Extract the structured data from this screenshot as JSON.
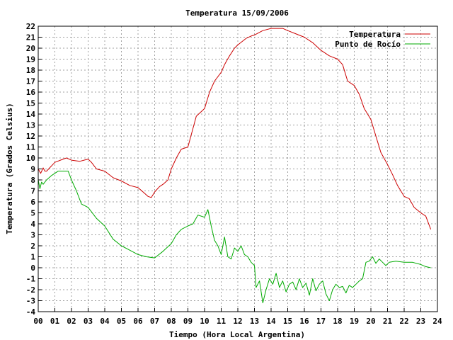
{
  "chart_data": {
    "type": "line",
    "title": "Temperatura 15/09/2006",
    "xlabel": "Tiempo (Hora Local Argentina)",
    "ylabel": "Temperatura (Grados Celsius)",
    "xlim": [
      0,
      24
    ],
    "ylim": [
      -4,
      22
    ],
    "x_ticks": [
      "00",
      "01",
      "02",
      "03",
      "04",
      "05",
      "06",
      "07",
      "08",
      "09",
      "10",
      "11",
      "12",
      "13",
      "14",
      "15",
      "16",
      "17",
      "18",
      "19",
      "20",
      "21",
      "22",
      "23",
      "24"
    ],
    "y_ticks": [
      "-4",
      "-3",
      "-2",
      "-1",
      "0",
      "1",
      "2",
      "3",
      "4",
      "5",
      "6",
      "7",
      "8",
      "9",
      "10",
      "11",
      "12",
      "13",
      "14",
      "15",
      "16",
      "17",
      "18",
      "19",
      "20",
      "21",
      "22"
    ],
    "grid": true,
    "legend_position": "top-right",
    "series": [
      {
        "name": "Temperatura",
        "color": "#cc0000",
        "x": [
          0.0,
          0.15,
          0.3,
          0.4,
          0.5,
          1.0,
          1.5,
          1.7,
          2.0,
          2.5,
          3.0,
          3.2,
          3.5,
          4.0,
          4.5,
          5.0,
          5.5,
          6.0,
          6.3,
          6.6,
          6.8,
          7.0,
          7.3,
          7.5,
          7.8,
          8.0,
          8.3,
          8.6,
          9.0,
          9.5,
          10.0,
          10.3,
          10.6,
          11.0,
          11.2,
          11.5,
          11.8,
          12.0,
          12.5,
          12.8,
          13.0,
          13.5,
          14.0,
          14.3,
          14.7,
          15.0,
          15.5,
          16.0,
          16.5,
          17.0,
          17.5,
          18.0,
          18.3,
          18.6,
          19.0,
          19.3,
          19.6,
          20.0,
          20.3,
          20.6,
          21.0,
          21.3,
          21.6,
          22.0,
          22.3,
          22.6,
          23.0,
          23.3,
          23.6
        ],
        "y": [
          9.0,
          8.6,
          9.1,
          8.8,
          8.8,
          9.6,
          9.9,
          10.0,
          9.8,
          9.7,
          9.9,
          9.6,
          9.0,
          8.8,
          8.2,
          7.9,
          7.5,
          7.3,
          6.9,
          6.5,
          6.4,
          6.9,
          7.4,
          7.6,
          8.0,
          9.0,
          10.0,
          10.8,
          11.0,
          13.8,
          14.5,
          16.0,
          17.0,
          17.8,
          18.5,
          19.3,
          20.0,
          20.3,
          20.9,
          21.1,
          21.2,
          21.6,
          21.8,
          21.8,
          21.8,
          21.6,
          21.3,
          21.0,
          20.5,
          19.8,
          19.3,
          19.0,
          18.5,
          17.0,
          16.6,
          15.8,
          14.5,
          13.5,
          12.0,
          10.5,
          9.4,
          8.5,
          7.5,
          6.5,
          6.3,
          5.5,
          5.0,
          4.7,
          3.5
        ]
      },
      {
        "name": "Punto de Rocío",
        "color": "#00aa00",
        "x": [
          0.0,
          0.1,
          0.2,
          0.3,
          0.5,
          0.8,
          1.0,
          1.2,
          1.5,
          1.8,
          2.0,
          2.3,
          2.6,
          3.0,
          3.5,
          4.0,
          4.5,
          5.0,
          5.5,
          6.0,
          6.5,
          7.0,
          7.5,
          8.0,
          8.3,
          8.6,
          9.0,
          9.3,
          9.6,
          10.0,
          10.2,
          10.4,
          10.6,
          10.8,
          11.0,
          11.2,
          11.4,
          11.6,
          11.8,
          12.0,
          12.2,
          12.4,
          12.6,
          12.8,
          13.0,
          13.1,
          13.3,
          13.5,
          13.7,
          13.9,
          14.1,
          14.3,
          14.5,
          14.7,
          14.9,
          15.1,
          15.3,
          15.5,
          15.7,
          15.9,
          16.1,
          16.3,
          16.5,
          16.7,
          16.9,
          17.1,
          17.3,
          17.5,
          17.7,
          17.9,
          18.1,
          18.3,
          18.5,
          18.7,
          18.9,
          19.1,
          19.3,
          19.5,
          19.7,
          19.9,
          20.1,
          20.3,
          20.5,
          20.7,
          20.9,
          21.1,
          21.5,
          22.0,
          22.5,
          23.0,
          23.3,
          23.6
        ],
        "y": [
          8.0,
          7.2,
          7.8,
          7.6,
          8.0,
          8.4,
          8.6,
          8.8,
          8.8,
          8.8,
          8.0,
          7.0,
          5.8,
          5.5,
          4.5,
          3.8,
          2.6,
          2.0,
          1.6,
          1.2,
          1.0,
          0.9,
          1.5,
          2.2,
          3.0,
          3.5,
          3.8,
          4.0,
          4.8,
          4.6,
          5.3,
          3.8,
          2.5,
          2.0,
          1.2,
          2.8,
          1.0,
          0.8,
          1.8,
          1.5,
          2.0,
          1.2,
          1.0,
          0.5,
          0.2,
          -1.8,
          -1.2,
          -3.2,
          -2.0,
          -1.0,
          -1.5,
          -0.5,
          -1.8,
          -1.2,
          -2.2,
          -1.5,
          -1.3,
          -2.0,
          -1.0,
          -1.8,
          -1.4,
          -2.5,
          -1.0,
          -2.1,
          -1.5,
          -1.2,
          -2.4,
          -3.0,
          -2.0,
          -1.5,
          -1.8,
          -1.7,
          -2.3,
          -1.6,
          -1.8,
          -1.5,
          -1.2,
          -1.0,
          0.5,
          0.6,
          1.0,
          0.4,
          0.8,
          0.5,
          0.2,
          0.5,
          0.6,
          0.5,
          0.5,
          0.3,
          0.1,
          0.0
        ]
      }
    ]
  }
}
